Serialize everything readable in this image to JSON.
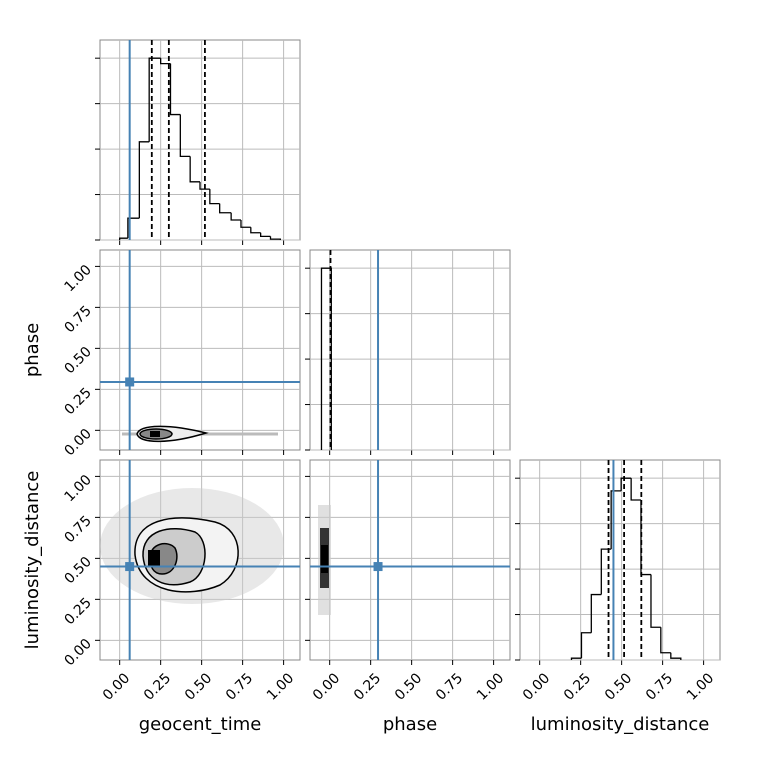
{
  "chart_data": [
    {
      "type": "histogram",
      "bins": [
        0.0,
        0.05,
        0.12,
        0.18,
        0.25,
        0.31,
        0.37,
        0.43,
        0.49,
        0.55,
        0.61,
        0.68,
        0.74,
        0.8,
        0.86,
        0.92,
        0.98
      ],
      "values": [
        0.01,
        0.12,
        0.54,
        1.0,
        0.97,
        0.69,
        0.46,
        0.32,
        0.28,
        0.2,
        0.15,
        0.11,
        0.07,
        0.04,
        0.02,
        0.005
      ],
      "color": "#000000",
      "xlim": [
        -0.12,
        1.1
      ],
      "ylim": [
        0,
        1.1
      ],
      "xticks": [
        0,
        0.25,
        0.5,
        0.75,
        1
      ],
      "yticks": [
        0,
        0.25,
        0.5,
        0.75,
        1
      ],
      "quantiles": [
        0.196,
        0.3,
        0.52
      ],
      "truth": 0.061,
      "truth_color": "#4682b4",
      "grid": true
    },
    {
      "type": "contour",
      "xlim": [
        -0.12,
        1.1
      ],
      "ylim": [
        -0.12,
        1.1
      ],
      "xticks": [
        0,
        0.25,
        0.5,
        0.75,
        1
      ],
      "yticks": [
        {
          "value": 0,
          "label": "0.00"
        },
        {
          "value": 0.25,
          "label": "0.25"
        },
        {
          "value": 0.5,
          "label": "0.50"
        },
        {
          "value": 0.75,
          "label": "0.75"
        },
        {
          "value": 1,
          "label": "1.00"
        }
      ],
      "ylabel": "phase",
      "truth": [
        0.061,
        0.295
      ],
      "truth_color": "#4682b4",
      "grid": true
    },
    {
      "type": "histogram",
      "bins": [
        -0.05,
        0.01
      ],
      "values": [
        1.0
      ],
      "color": "#000000",
      "xlim": [
        -0.12,
        1.1
      ],
      "ylim": [
        0,
        1.1
      ],
      "xticks": [
        0,
        0.25,
        0.5,
        0.75,
        1
      ],
      "yticks": [
        0,
        0.25,
        0.5,
        0.75,
        1
      ],
      "quantiles": [
        0.005
      ],
      "truth": 0.295,
      "truth_color": "#4682b4",
      "grid": true
    },
    {
      "type": "contour",
      "xlim": [
        -0.12,
        1.1
      ],
      "ylim": [
        -0.12,
        1.1
      ],
      "xticks": [
        {
          "value": 0,
          "label": "0.00"
        },
        {
          "value": 0.25,
          "label": "0.25"
        },
        {
          "value": 0.5,
          "label": "0.50"
        },
        {
          "value": 0.75,
          "label": "0.75"
        },
        {
          "value": 1,
          "label": "1.00"
        }
      ],
      "yticks": [
        {
          "value": 0,
          "label": "0.00"
        },
        {
          "value": 0.25,
          "label": "0.25"
        },
        {
          "value": 0.5,
          "label": "0.50"
        },
        {
          "value": 0.75,
          "label": "0.75"
        },
        {
          "value": 1,
          "label": "1.00"
        }
      ],
      "xlabel": "geocent_time",
      "ylabel": "luminosity_distance",
      "truth": [
        0.061,
        0.45
      ],
      "truth_color": "#4682b4",
      "grid": true
    },
    {
      "type": "contour",
      "xlim": [
        -0.12,
        1.1
      ],
      "ylim": [
        -0.12,
        1.1
      ],
      "xticks": [
        {
          "value": 0,
          "label": "0.00"
        },
        {
          "value": 0.25,
          "label": "0.25"
        },
        {
          "value": 0.5,
          "label": "0.50"
        },
        {
          "value": 0.75,
          "label": "0.75"
        },
        {
          "value": 1,
          "label": "1.00"
        }
      ],
      "yticks": [
        0,
        0.25,
        0.5,
        0.75,
        1
      ],
      "xlabel": "phase",
      "truth": [
        0.295,
        0.45
      ],
      "truth_color": "#4682b4",
      "grid": true
    },
    {
      "type": "histogram",
      "bins": [
        0.194,
        0.255,
        0.315,
        0.376,
        0.436,
        0.497,
        0.558,
        0.618,
        0.679,
        0.739,
        0.8,
        0.861
      ],
      "values": [
        0.01,
        0.15,
        0.36,
        0.61,
        0.93,
        1.0,
        0.88,
        0.47,
        0.18,
        0.04,
        0.01
      ],
      "color": "#000000",
      "xlim": [
        -0.12,
        1.1
      ],
      "ylim": [
        0,
        1.1
      ],
      "xticks": [
        {
          "value": 0,
          "label": "0.00"
        },
        {
          "value": 0.25,
          "label": "0.25"
        },
        {
          "value": 0.5,
          "label": "0.50"
        },
        {
          "value": 0.75,
          "label": "0.75"
        },
        {
          "value": 1,
          "label": "1.00"
        }
      ],
      "yticks": [
        0,
        0.25,
        0.5,
        0.75,
        1
      ],
      "xlabel": "luminosity_distance",
      "quantiles": [
        0.42,
        0.515,
        0.62
      ],
      "truth": 0.45,
      "truth_color": "#4682b4",
      "grid": true
    }
  ]
}
